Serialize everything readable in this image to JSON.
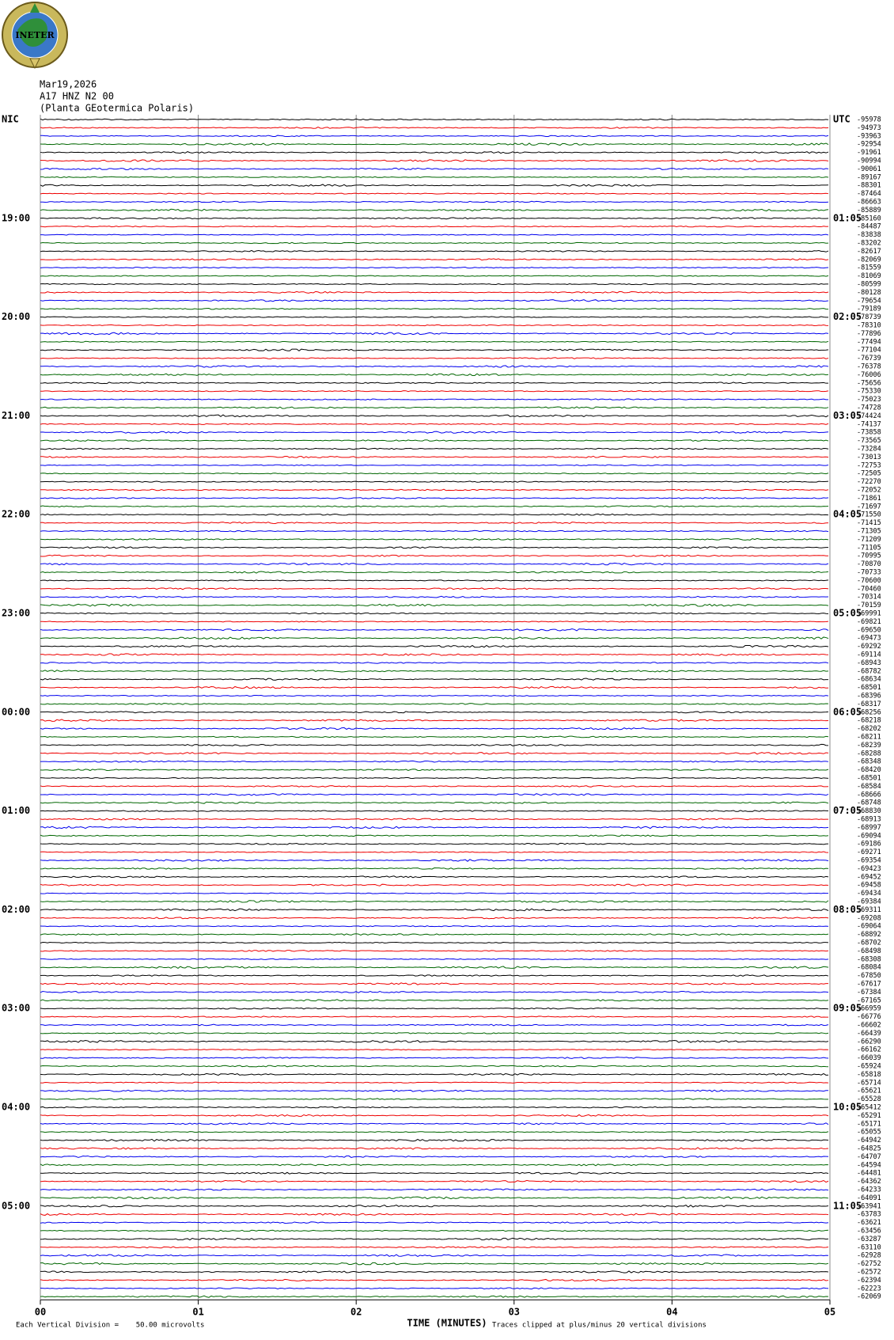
{
  "chart_data": {
    "type": "helicorder",
    "logo_text": "INETER",
    "title": "Mar19,2026",
    "subtitle": "A17 HNZ N2 00",
    "station": "(Planta GEotermica Polaris)",
    "xlabel": "TIME (MINUTES)",
    "scale_note": "Each Vertical Division =    50.00 microvolts",
    "clip_note": "Traces clipped at plus/minus 20 vertical divisions",
    "xlim": [
      0,
      5
    ],
    "xticks": [
      {
        "value": 0,
        "label": "00"
      },
      {
        "value": 1,
        "label": "01"
      },
      {
        "value": 2,
        "label": "02"
      },
      {
        "value": 3,
        "label": "03"
      },
      {
        "value": 4,
        "label": "04"
      },
      {
        "value": 5,
        "label": "05"
      }
    ],
    "grid": true,
    "trace_colors": [
      "#000000",
      "#ee0000",
      "#0000ee",
      "#006600"
    ],
    "left_labels": [
      "NIC",
      null,
      null,
      null,
      null,
      null,
      null,
      null,
      null,
      null,
      null,
      null,
      "19:00",
      null,
      null,
      null,
      null,
      null,
      null,
      null,
      null,
      null,
      null,
      null,
      "20:00",
      null,
      null,
      null,
      null,
      null,
      null,
      null,
      null,
      null,
      null,
      null,
      "21:00",
      null,
      null,
      null,
      null,
      null,
      null,
      null,
      null,
      null,
      null,
      null,
      "22:00",
      null,
      null,
      null,
      null,
      null,
      null,
      null,
      null,
      null,
      null,
      null,
      "23:00",
      null,
      null,
      null,
      null,
      null,
      null,
      null,
      null,
      null,
      null,
      null,
      "00:00",
      null,
      null,
      null,
      null,
      null,
      null,
      null,
      null,
      null,
      null,
      null,
      "01:00",
      null,
      null,
      null,
      null,
      null,
      null,
      null,
      null,
      null,
      null,
      null,
      "02:00",
      null,
      null,
      null,
      null,
      null,
      null,
      null,
      null,
      null,
      null,
      null,
      "03:00",
      null,
      null,
      null,
      null,
      null,
      null,
      null,
      null,
      null,
      null,
      null,
      "04:00",
      null,
      null,
      null,
      null,
      null,
      null,
      null,
      null,
      null,
      null,
      null,
      "05:00",
      null,
      null,
      null,
      null,
      null,
      null,
      null,
      null,
      null,
      null,
      null
    ],
    "right_labels": [
      "UTC",
      null,
      null,
      null,
      null,
      null,
      null,
      null,
      null,
      null,
      null,
      null,
      "01:05",
      null,
      null,
      null,
      null,
      null,
      null,
      null,
      null,
      null,
      null,
      null,
      "02:05",
      null,
      null,
      null,
      null,
      null,
      null,
      null,
      null,
      null,
      null,
      null,
      "03:05",
      null,
      null,
      null,
      null,
      null,
      null,
      null,
      null,
      null,
      null,
      null,
      "04:05",
      null,
      null,
      null,
      null,
      null,
      null,
      null,
      null,
      null,
      null,
      null,
      "05:05",
      null,
      null,
      null,
      null,
      null,
      null,
      null,
      null,
      null,
      null,
      null,
      "06:05",
      null,
      null,
      null,
      null,
      null,
      null,
      null,
      null,
      null,
      null,
      null,
      "07:05",
      null,
      null,
      null,
      null,
      null,
      null,
      null,
      null,
      null,
      null,
      null,
      "08:05",
      null,
      null,
      null,
      null,
      null,
      null,
      null,
      null,
      null,
      null,
      null,
      "09:05",
      null,
      null,
      null,
      null,
      null,
      null,
      null,
      null,
      null,
      null,
      null,
      "10:05",
      null,
      null,
      null,
      null,
      null,
      null,
      null,
      null,
      null,
      null,
      null,
      "11:05",
      null,
      null,
      null,
      null,
      null,
      null,
      null,
      null,
      null,
      null,
      null
    ],
    "offsets": [
      -95978,
      -94973,
      -93963,
      -92954,
      -91961,
      -90994,
      -90061,
      -89167,
      -88301,
      -87464,
      -86663,
      -85889,
      -85160,
      -84487,
      -83838,
      -83202,
      -82617,
      -82069,
      -81559,
      -81069,
      -80599,
      -80128,
      -79654,
      -79189,
      -78739,
      -78310,
      -77896,
      -77494,
      -77104,
      -76739,
      -76378,
      -76006,
      -75656,
      -75330,
      -75023,
      -74728,
      -74424,
      -74137,
      -73858,
      -73565,
      -73284,
      -73013,
      -72753,
      -72505,
      -72270,
      -72052,
      -71861,
      -71697,
      -71550,
      -71415,
      -71305,
      -71209,
      -71105,
      -70995,
      -70870,
      -70733,
      -70600,
      -70460,
      -70314,
      -70159,
      -69991,
      -69821,
      -69650,
      -69473,
      -69292,
      -69114,
      -68943,
      -68782,
      -68634,
      -68501,
      -68396,
      -68317,
      -68256,
      -68218,
      -68202,
      -68211,
      -68239,
      -68288,
      -68348,
      -68420,
      -68501,
      -68584,
      -68666,
      -68748,
      -68830,
      -68913,
      -68997,
      -69094,
      -69186,
      -69271,
      -69354,
      -69423,
      -69452,
      -69458,
      -69434,
      -69384,
      -69311,
      -69208,
      -69064,
      -68892,
      -68702,
      -68498,
      -68308,
      -68084,
      -67850,
      -67617,
      -67384,
      -67165,
      -66959,
      -66776,
      -66602,
      -66439,
      -66290,
      -66162,
      -66039,
      -65924,
      -65818,
      -65714,
      -65621,
      -65528,
      -65412,
      -65291,
      -65171,
      -65055,
      -64942,
      -64825,
      -64707,
      -64594,
      -64481,
      -64362,
      -64233,
      -64091,
      -63941,
      -63783,
      -63621,
      -63456,
      -63287,
      -63110,
      -62928,
      -62752,
      -62572,
      -62394,
      -62223,
      -62069
    ]
  }
}
